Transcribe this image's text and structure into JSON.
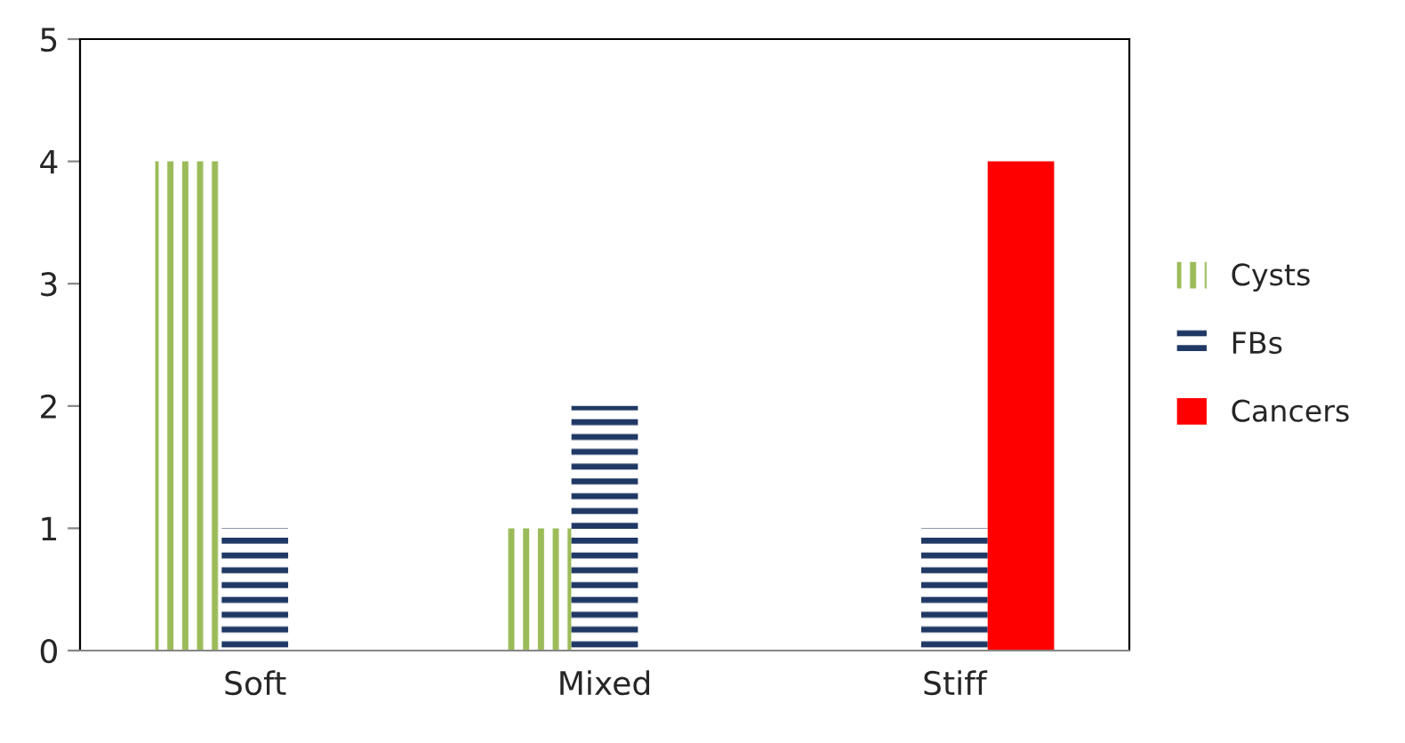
{
  "chart_data": {
    "type": "bar",
    "categories": [
      "Soft",
      "Mixed",
      "Stiff"
    ],
    "series": [
      {
        "name": "Cysts",
        "color": "#9bbb59",
        "values": [
          4,
          1,
          0
        ]
      },
      {
        "name": "FBs",
        "color": "#1f3864",
        "values": [
          1,
          2,
          1
        ]
      },
      {
        "name": "Cancers",
        "color": "#ff0000",
        "values": [
          0,
          0,
          4
        ]
      }
    ],
    "ylim": [
      0,
      5
    ],
    "yticks": [
      0,
      1,
      2,
      3,
      4,
      5
    ],
    "grid": false,
    "legend": "right"
  }
}
